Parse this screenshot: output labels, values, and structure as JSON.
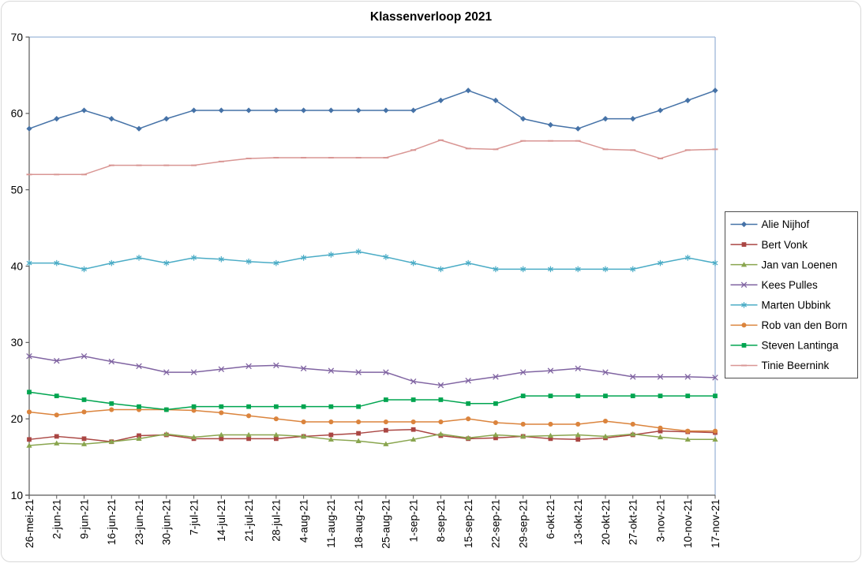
{
  "chart": {
    "title": "Klassenverloop 2021"
  },
  "chart_data": {
    "type": "line",
    "title": "Klassenverloop 2021",
    "xlabel": "",
    "ylabel": "",
    "ylim": [
      10,
      70
    ],
    "yticks": [
      10,
      20,
      30,
      40,
      50,
      60,
      70
    ],
    "grid": false,
    "legend_position": "right",
    "categories": [
      "26-mei-21",
      "2-jun-21",
      "9-jun-21",
      "16-jun-21",
      "23-jun-21",
      "30-jun-21",
      "7-jul-21",
      "14-jul-21",
      "21-jul-21",
      "28-jul-21",
      "4-aug-21",
      "11-aug-21",
      "18-aug-21",
      "25-aug-21",
      "1-sep-21",
      "8-sep-21",
      "15-sep-21",
      "22-sep-21",
      "29-sep-21",
      "6-okt-21",
      "13-okt-21",
      "20-okt-21",
      "27-okt-21",
      "3-nov-21",
      "10-nov-21",
      "17-nov-21"
    ],
    "series": [
      {
        "name": "Alie Nijhof",
        "color": "#4572A7",
        "marker": "diamond",
        "values": [
          58,
          59.3,
          60.4,
          59.3,
          58,
          59.3,
          60.4,
          60.4,
          60.4,
          60.4,
          60.4,
          60.4,
          60.4,
          60.4,
          60.4,
          61.7,
          63,
          61.7,
          59.3,
          58.5,
          58,
          59.3,
          59.3,
          60.4,
          61.7,
          63
        ]
      },
      {
        "name": "Bert Vonk",
        "color": "#AA4643",
        "marker": "square",
        "values": [
          17.3,
          17.7,
          17.4,
          17,
          17.8,
          17.9,
          17.4,
          17.4,
          17.4,
          17.4,
          17.7,
          17.9,
          18.1,
          18.5,
          18.6,
          17.8,
          17.4,
          17.5,
          17.7,
          17.4,
          17.3,
          17.5,
          17.9,
          18.4,
          18.3,
          18.2
        ]
      },
      {
        "name": "Jan van Loenen",
        "color": "#89A54E",
        "marker": "triangle",
        "values": [
          16.5,
          16.8,
          16.7,
          17,
          17.4,
          18,
          17.6,
          17.9,
          17.9,
          17.9,
          17.7,
          17.3,
          17.1,
          16.7,
          17.3,
          18,
          17.5,
          17.9,
          17.7,
          17.8,
          17.9,
          17.7,
          18,
          17.6,
          17.3,
          17.3
        ]
      },
      {
        "name": "Kees Pulles",
        "color": "#8064A2",
        "marker": "x",
        "values": [
          28.2,
          27.6,
          28.2,
          27.5,
          26.9,
          26.1,
          26.1,
          26.5,
          26.9,
          27,
          26.6,
          26.3,
          26.1,
          26.1,
          24.9,
          24.4,
          25,
          25.5,
          26.1,
          26.3,
          26.6,
          26.1,
          25.5,
          25.5,
          25.5,
          25.4
        ]
      },
      {
        "name": "Marten Ubbink",
        "color": "#4BACC6",
        "marker": "asterisk",
        "values": [
          40.4,
          40.4,
          39.6,
          40.4,
          41.1,
          40.4,
          41.1,
          40.9,
          40.6,
          40.4,
          41.1,
          41.5,
          41.9,
          41.2,
          40.4,
          39.6,
          40.4,
          39.6,
          39.6,
          39.6,
          39.6,
          39.6,
          39.6,
          40.4,
          41.1,
          40.4
        ]
      },
      {
        "name": "Rob van den Born",
        "color": "#DB843D",
        "marker": "circle",
        "values": [
          20.9,
          20.5,
          20.9,
          21.2,
          21.2,
          21.2,
          21.1,
          20.8,
          20.4,
          20,
          19.6,
          19.6,
          19.6,
          19.6,
          19.6,
          19.6,
          20,
          19.5,
          19.3,
          19.3,
          19.3,
          19.7,
          19.3,
          18.8,
          18.4,
          18.4
        ]
      },
      {
        "name": "Steven Lantinga",
        "color": "#00A550",
        "marker": "square",
        "values": [
          23.5,
          23,
          22.5,
          22,
          21.6,
          21.2,
          21.6,
          21.6,
          21.6,
          21.6,
          21.6,
          21.6,
          21.6,
          22.5,
          22.5,
          22.5,
          22,
          22,
          23,
          23,
          23,
          23,
          23,
          23,
          23,
          23
        ]
      },
      {
        "name": "Tinie Beernink",
        "color": "#D99694",
        "marker": "dash",
        "values": [
          52,
          52,
          52,
          53.2,
          53.2,
          53.2,
          53.2,
          53.7,
          54.1,
          54.2,
          54.2,
          54.2,
          54.2,
          54.2,
          55.2,
          56.5,
          55.4,
          55.3,
          56.4,
          56.4,
          56.4,
          55.3,
          55.2,
          54.1,
          55.2,
          55.3
        ]
      }
    ]
  },
  "colors": {
    "plot_border": "#9EB6D9",
    "axis": "#595959",
    "frame": "#D9D9D9",
    "legend_border": "#4D4D4D",
    "text": "#000000"
  }
}
